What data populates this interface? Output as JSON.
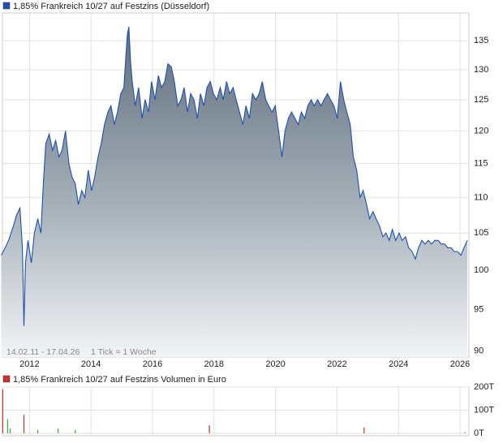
{
  "chart_data": [
    {
      "type": "area",
      "title": "1,85% Frankreich 10/27 auf Festzins (Düsseldorf)",
      "annotations": [
        "14.02.11 - 17.04.26",
        "1 Tick = 1 Woche"
      ],
      "color": "#1f4fb0",
      "log_scale": true,
      "grid": true,
      "xlim": [
        2011.12,
        2026.29
      ],
      "xticks": [
        2012,
        2014,
        2016,
        2018,
        2020,
        2022,
        2024,
        2026
      ],
      "ylim": [
        89.3,
        140
      ],
      "yticks": [
        90,
        95,
        100,
        105,
        110,
        115,
        120,
        125,
        130,
        135
      ],
      "x": [
        2011.08,
        2011.21,
        2011.32,
        2011.48,
        2011.58,
        2011.69,
        2011.77,
        2011.82,
        2011.87,
        2011.95,
        2012.06,
        2012.16,
        2012.27,
        2012.37,
        2012.45,
        2012.53,
        2012.64,
        2012.75,
        2012.85,
        2012.96,
        2013.06,
        2013.17,
        2013.28,
        2013.38,
        2013.49,
        2013.59,
        2013.7,
        2013.8,
        2013.91,
        2014.02,
        2014.12,
        2014.23,
        2014.33,
        2014.44,
        2014.55,
        2014.65,
        2014.76,
        2014.86,
        2014.97,
        2015.07,
        2015.13,
        2015.18,
        2015.23,
        2015.29,
        2015.34,
        2015.44,
        2015.55,
        2015.66,
        2015.76,
        2015.87,
        2015.97,
        2016.08,
        2016.19,
        2016.29,
        2016.4,
        2016.5,
        2016.61,
        2016.71,
        2016.82,
        2016.93,
        2017.03,
        2017.14,
        2017.24,
        2017.35,
        2017.46,
        2017.56,
        2017.67,
        2017.77,
        2017.88,
        2017.98,
        2018.09,
        2018.2,
        2018.3,
        2018.41,
        2018.51,
        2018.62,
        2018.72,
        2018.83,
        2018.94,
        2019.04,
        2019.15,
        2019.25,
        2019.36,
        2019.47,
        2019.57,
        2019.68,
        2019.78,
        2019.89,
        2019.99,
        2020.1,
        2020.21,
        2020.31,
        2020.42,
        2020.52,
        2020.63,
        2020.74,
        2020.84,
        2020.95,
        2021.05,
        2021.16,
        2021.26,
        2021.37,
        2021.48,
        2021.58,
        2021.69,
        2021.79,
        2021.9,
        2022.01,
        2022.11,
        2022.22,
        2022.32,
        2022.43,
        2022.53,
        2022.64,
        2022.75,
        2022.85,
        2022.96,
        2023.06,
        2023.17,
        2023.27,
        2023.38,
        2023.49,
        2023.59,
        2023.7,
        2023.8,
        2023.91,
        2024.02,
        2024.12,
        2024.23,
        2024.33,
        2024.44,
        2024.55,
        2024.65,
        2024.76,
        2024.86,
        2024.97,
        2025.07,
        2025.18,
        2025.29,
        2025.39,
        2025.5,
        2025.6,
        2025.71,
        2025.81,
        2025.92,
        2026.03,
        2026.13,
        2026.24
      ],
      "values": [
        102,
        103,
        104,
        106,
        107.5,
        108.5,
        103,
        93,
        101,
        104,
        101,
        105,
        107,
        105,
        112,
        118,
        119.5,
        117,
        118.5,
        116,
        117,
        120,
        115,
        113,
        112,
        109,
        111,
        110,
        114,
        111,
        113,
        116,
        118,
        121,
        123,
        124,
        121,
        123,
        126,
        127,
        132,
        136,
        137.5,
        131,
        128,
        124,
        127,
        122,
        125,
        123,
        128,
        125,
        129,
        127,
        128,
        131,
        130.5,
        128,
        124,
        125,
        127,
        123,
        126,
        125,
        122,
        126,
        124,
        127,
        128,
        126,
        125,
        127,
        125,
        128,
        126,
        127,
        125,
        123,
        121,
        124,
        122,
        126,
        125,
        126,
        128,
        125,
        124,
        123,
        124,
        120,
        116,
        120,
        122,
        123,
        122,
        121,
        123,
        122,
        124,
        125,
        124,
        125,
        124,
        125,
        126,
        125,
        124,
        122,
        128,
        125,
        123,
        121,
        116,
        114,
        110,
        111,
        109,
        107,
        108,
        107,
        106,
        104.5,
        105,
        104,
        105.5,
        104,
        105,
        104,
        104.5,
        103,
        102.5,
        101.5,
        103,
        104,
        103.5,
        104,
        103.5,
        104,
        104,
        103.5,
        103.5,
        103,
        103,
        102.5,
        102.5,
        102,
        103,
        104
      ]
    },
    {
      "type": "bar",
      "title": "1,85% Frankreich 10/27 auf Festzins Volumen in Euro",
      "color": "#cc3333",
      "xlim": [
        2011.12,
        2026.29
      ],
      "ylim": [
        0,
        200000
      ],
      "yticks": [
        {
          "value": 0,
          "label": "0T"
        },
        {
          "value": 100000,
          "label": "100T"
        },
        {
          "value": 200000,
          "label": "200T"
        }
      ],
      "x": [
        2011.13,
        2011.29,
        2011.37,
        2011.82,
        2012.27,
        2012.93,
        2013.49,
        2017.85,
        2022.88,
        2026.16
      ],
      "values": [
        190000,
        60000,
        20000,
        80000,
        15000,
        20000,
        15000,
        35000,
        25000,
        5000
      ],
      "colors": [
        "#cc3333",
        "#33aa33",
        "#33aa33",
        "#cc3333",
        "#33aa33",
        "#33aa33",
        "#33aa33",
        "#cc3333",
        "#cc3333",
        "#888888"
      ]
    }
  ]
}
